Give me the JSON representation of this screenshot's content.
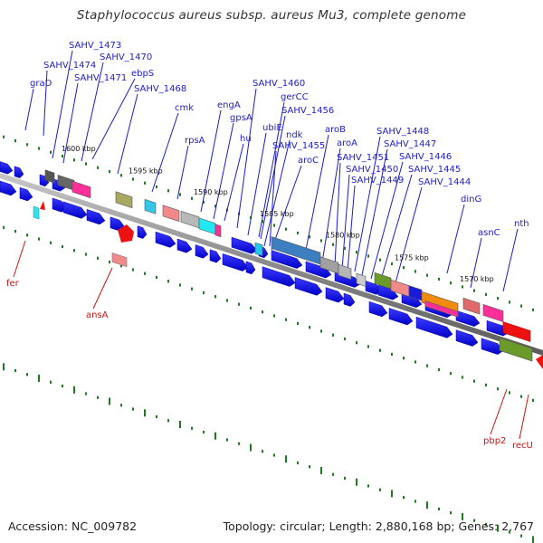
{
  "title": "Staphylococcus aureus subsp. aureus Mu3, complete genome",
  "footer": {
    "accession": "Accession: NC_009782",
    "summary": "Topology: circular; Length: 2,880,168 bp; Genes: 2,767"
  },
  "colors": {
    "label_top": "#1c1ccc",
    "label_bottom": "#cc1111",
    "feature_blue": "#0a0ae6",
    "backbone": "#7a7a7a",
    "dots": "#1e7a1e"
  },
  "ticks": [
    "1600 kbp",
    "1595 kbp",
    "1590 kbp",
    "1585 kbp",
    "1580 kbp",
    "1575 kbp",
    "1570 kbp"
  ],
  "labels_top": [
    "graD",
    "SAHV_1474",
    "SAHV_1473",
    "SAHV_1471",
    "SAHV_1470",
    "ebpS",
    "SAHV_1468",
    "cmk",
    "rpsA",
    "engA",
    "gpsA",
    "hu",
    "SAHV_1460",
    "ubiE",
    "gerCC",
    "SAHV_1456",
    "ndk",
    "SAHV_1455",
    "aroC",
    "aroB",
    "aroA",
    "SAHV_1451",
    "SAHV_1450",
    "SAHV_1449",
    "SAHV_1448",
    "SAHV_1447",
    "SAHV_1446",
    "SAHV_1445",
    "SAHV_1444",
    "dinG",
    "asnC",
    "nth"
  ],
  "labels_bottom": [
    "fer",
    "ansA",
    "pbp2",
    "recU"
  ]
}
